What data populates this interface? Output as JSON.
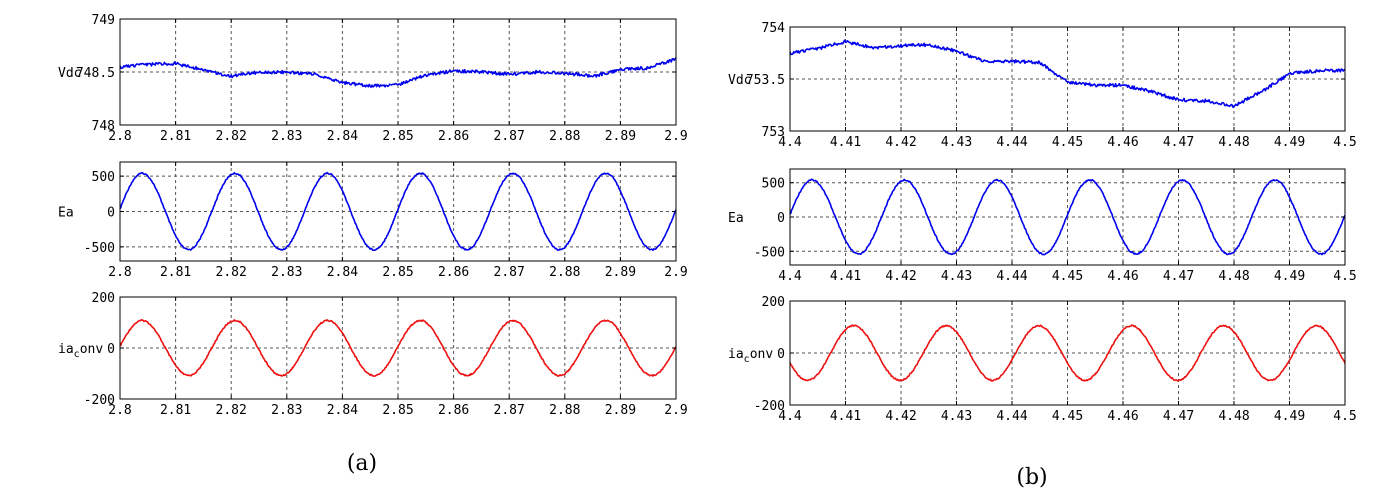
{
  "colors": {
    "blue_trace": "#0000ee",
    "red_trace": "#ee1111",
    "grid": "#555555",
    "axes": "#000000"
  },
  "captions": {
    "a": "(a)",
    "b": "(b)"
  },
  "chart_data": [
    {
      "id": "a-vdc",
      "type": "line",
      "ylabel": "Vdc",
      "xlim": [
        2.8,
        2.9
      ],
      "ylim": [
        748,
        749
      ],
      "xticks": [
        2.8,
        2.81,
        2.82,
        2.83,
        2.84,
        2.85,
        2.86,
        2.87,
        2.88,
        2.89,
        2.9
      ],
      "xtick_labels": [
        "2.8",
        "2.81",
        "2.82",
        "2.83",
        "2.84",
        "2.85",
        "2.86",
        "2.87",
        "2.88",
        "2.89",
        "2.9"
      ],
      "yticks": [
        748,
        748.5,
        749
      ],
      "ytick_labels": [
        "748",
        "748.5",
        "749"
      ],
      "grid": true,
      "series": [
        {
          "color": "#0000ee",
          "x": [
            2.8,
            2.805,
            2.81,
            2.815,
            2.82,
            2.825,
            2.83,
            2.835,
            2.84,
            2.845,
            2.85,
            2.855,
            2.86,
            2.865,
            2.87,
            2.875,
            2.88,
            2.885,
            2.89,
            2.895,
            2.9
          ],
          "y": [
            748.55,
            748.57,
            748.58,
            748.52,
            748.46,
            748.5,
            748.5,
            748.48,
            748.4,
            748.37,
            748.38,
            748.47,
            748.51,
            748.5,
            748.48,
            748.5,
            748.49,
            748.46,
            748.52,
            748.54,
            748.62
          ]
        }
      ]
    },
    {
      "id": "a-ea",
      "type": "line",
      "ylabel": "Ea",
      "xlim": [
        2.8,
        2.9
      ],
      "ylim": [
        -700,
        700
      ],
      "xticks": [
        2.8,
        2.81,
        2.82,
        2.83,
        2.84,
        2.85,
        2.86,
        2.87,
        2.88,
        2.89,
        2.9
      ],
      "xtick_labels": [
        "2.8",
        "2.81",
        "2.82",
        "2.83",
        "2.84",
        "2.85",
        "2.86",
        "2.87",
        "2.88",
        "2.89",
        "2.9"
      ],
      "yticks": [
        -500,
        0,
        500
      ],
      "ytick_labels": [
        "-500",
        "0",
        "500"
      ],
      "grid": true,
      "series": [
        {
          "color": "#0000ee",
          "waveform": "sine",
          "amplitude": 540,
          "period": 0.01667,
          "peak_x": 2.804
        }
      ]
    },
    {
      "id": "a-iaconv",
      "type": "line",
      "ylabel": "ia_conv",
      "xlim": [
        2.8,
        2.9
      ],
      "ylim": [
        -200,
        200
      ],
      "xticks": [
        2.8,
        2.81,
        2.82,
        2.83,
        2.84,
        2.85,
        2.86,
        2.87,
        2.88,
        2.89,
        2.9
      ],
      "xtick_labels": [
        "2.8",
        "2.81",
        "2.82",
        "2.83",
        "2.84",
        "2.85",
        "2.86",
        "2.87",
        "2.88",
        "2.89",
        "2.9"
      ],
      "yticks": [
        -200,
        0,
        200
      ],
      "ytick_labels": [
        "-200",
        "0",
        "200"
      ],
      "grid": true,
      "series": [
        {
          "color": "#ee1111",
          "waveform": "sine",
          "amplitude": 108,
          "period": 0.01667,
          "peak_x": 2.804
        }
      ]
    },
    {
      "id": "b-vdc",
      "type": "line",
      "ylabel": "Vdc",
      "xlim": [
        4.4,
        4.5
      ],
      "ylim": [
        753,
        754
      ],
      "xticks": [
        4.4,
        4.41,
        4.42,
        4.43,
        4.44,
        4.45,
        4.46,
        4.47,
        4.48,
        4.49,
        4.5
      ],
      "xtick_labels": [
        "4.4",
        "4.41",
        "4.42",
        "4.43",
        "4.44",
        "4.45",
        "4.46",
        "4.47",
        "4.48",
        "4.49",
        "4.5"
      ],
      "yticks": [
        753,
        753.5,
        754
      ],
      "ytick_labels": [
        "753",
        "753.5",
        "754"
      ],
      "grid": true,
      "series": [
        {
          "color": "#0000ee",
          "x": [
            4.4,
            4.405,
            4.41,
            4.415,
            4.42,
            4.425,
            4.43,
            4.435,
            4.44,
            4.445,
            4.45,
            4.455,
            4.46,
            4.465,
            4.47,
            4.475,
            4.48,
            4.485,
            4.49,
            4.495,
            4.5
          ],
          "y": [
            753.75,
            753.79,
            753.86,
            753.8,
            753.82,
            753.83,
            753.77,
            753.67,
            753.67,
            753.66,
            753.47,
            753.44,
            753.44,
            753.38,
            753.3,
            753.29,
            753.24,
            753.38,
            753.55,
            753.58,
            753.58
          ]
        }
      ]
    },
    {
      "id": "b-ea",
      "type": "line",
      "ylabel": "Ea",
      "xlim": [
        4.4,
        4.5
      ],
      "ylim": [
        -700,
        700
      ],
      "xticks": [
        4.4,
        4.41,
        4.42,
        4.43,
        4.44,
        4.45,
        4.46,
        4.47,
        4.48,
        4.49,
        4.5
      ],
      "xtick_labels": [
        "4.4",
        "4.41",
        "4.42",
        "4.43",
        "4.44",
        "4.45",
        "4.46",
        "4.47",
        "4.48",
        "4.49",
        "4.5"
      ],
      "yticks": [
        -500,
        0,
        500
      ],
      "ytick_labels": [
        "-500",
        "0",
        "500"
      ],
      "grid": true,
      "series": [
        {
          "color": "#0000ee",
          "waveform": "sine",
          "amplitude": 540,
          "period": 0.01667,
          "peak_x": 4.404
        }
      ]
    },
    {
      "id": "b-iaconv",
      "type": "line",
      "ylabel": "ia_conv",
      "xlim": [
        4.4,
        4.5
      ],
      "ylim": [
        -200,
        200
      ],
      "xticks": [
        4.4,
        4.41,
        4.42,
        4.43,
        4.44,
        4.45,
        4.46,
        4.47,
        4.48,
        4.49,
        4.5
      ],
      "xtick_labels": [
        "4.4",
        "4.41",
        "4.42",
        "4.43",
        "4.44",
        "4.45",
        "4.46",
        "4.47",
        "4.48",
        "4.49",
        "4.5"
      ],
      "yticks": [
        -200,
        0,
        200
      ],
      "ytick_labels": [
        "-200",
        "0",
        "200"
      ],
      "grid": true,
      "series": [
        {
          "color": "#ee1111",
          "waveform": "sine",
          "amplitude": 105,
          "period": 0.01667,
          "peak_x": 4.4115
        }
      ]
    }
  ]
}
